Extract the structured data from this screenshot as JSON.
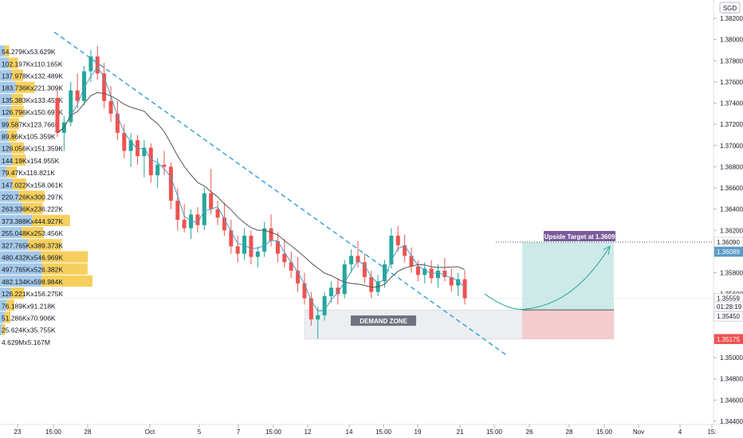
{
  "currency_label": "SGD",
  "price_axis": {
    "ticks": [
      "1.38200",
      "1.38000",
      "1.37800",
      "1.37600",
      "1.37400",
      "1.37200",
      "1.37000",
      "1.36800",
      "1.36600",
      "1.36400",
      "1.36200",
      "1.35800",
      "1.35600",
      "1.35400",
      "1.35200",
      "1.35000",
      "1.34800",
      "1.34600",
      "1.34400"
    ],
    "tick_values": [
      1.382,
      1.38,
      1.378,
      1.376,
      1.374,
      1.372,
      1.37,
      1.368,
      1.366,
      1.364,
      1.362,
      1.358,
      1.356,
      1.354,
      1.352,
      1.35,
      1.348,
      1.346,
      1.344
    ],
    "badges": [
      {
        "text": "1.36090",
        "value": 1.3609,
        "bg": "#ffffff",
        "fg": "#131722"
      },
      {
        "text": "1.36089",
        "value": 1.36089,
        "bg": "#5b9cc8",
        "fg": "#ffffff",
        "offset": 12
      },
      {
        "text": "1.35559",
        "value": 1.35559,
        "bg": "#ffffff",
        "fg": "#131722"
      },
      {
        "text": "01:28:19",
        "value": 1.35459,
        "bg": "#ffffff",
        "fg": "#131722",
        "offset": -3
      },
      {
        "text": "1.35450",
        "value": 1.3545,
        "bg": "#ffffff",
        "fg": "#131722",
        "offset": 8
      },
      {
        "text": "1.35175",
        "value": 1.35175,
        "bg": "#ef5350",
        "fg": "#ffffff"
      }
    ]
  },
  "time_axis": {
    "labels": [
      "23",
      "15:00",
      "28",
      "Oct",
      "5",
      "7",
      "15:00",
      "12",
      "14",
      "15:00",
      "19",
      "21",
      "15:00",
      "26",
      "28",
      "15:00",
      "Nov",
      "4",
      "15:"
    ]
  },
  "volume_profile": {
    "labels": [
      "54.279Kx53.629K",
      "102.197Kx110.165K",
      "137.978Kx132.489K",
      "183.736Kx221.309K",
      "135.383Kx133.452K",
      "126.796Kx150.697K",
      "99.587Kx123.766K",
      "89.86Kx105.359K",
      "128.056Kx151.359K",
      "144.19Kx154.955K",
      "79.47Kx116.821K",
      "147.022Kx158.061K",
      "220.726Kx300.297K",
      "263.336Kx236.222K",
      "373.388Kx444.927K",
      "255.048Kx253.456K",
      "327.765Kx389.373K",
      "480.432Kx546.969K",
      "497.765Kx526.382K",
      "482.134Kx598.984K",
      "126.221Kx156.275K",
      "76.189Kx91.218K",
      "51.286Kx70.906K",
      "25.624Kx35.755K",
      "4.629Mx5.167M"
    ],
    "up": [
      54.279,
      102.197,
      137.978,
      183.736,
      135.383,
      126.796,
      99.587,
      89.86,
      128.056,
      144.19,
      79.47,
      147.022,
      220.726,
      263.336,
      373.388,
      255.048,
      327.765,
      480.432,
      497.765,
      482.134,
      126.221,
      76.189,
      51.286,
      25.624
    ],
    "down": [
      53.629,
      110.165,
      132.489,
      221.309,
      133.452,
      150.697,
      123.766,
      105.359,
      151.359,
      154.955,
      116.821,
      158.061,
      300.297,
      236.222,
      444.927,
      253.456,
      389.373,
      546.969,
      526.382,
      598.984,
      156.275,
      91.218,
      70.906,
      35.755
    ]
  },
  "annotations": {
    "demand_zone": "DEMAND ZONE",
    "upside_target": "Upside Target at 1.3609"
  },
  "colors": {
    "up": "#26a69a",
    "down": "#ef5350",
    "trendline": "#2f9fd8",
    "ma_fast": "#4a9cc4",
    "ma_slow": "#555555",
    "profile_up": "#5b9cd6",
    "profile_down": "#f5c842",
    "target_label_bg": "#7a5c9c",
    "long_profit": "#b2dfdb",
    "long_loss": "#f5c6cb"
  },
  "chart_data": {
    "type": "candlestick",
    "symbol_currency": "SGD",
    "price_range": [
      1.343,
      1.383
    ],
    "trendline": {
      "from": [
        "Sep 22",
        1.3807
      ],
      "to": [
        "Oct 23",
        1.3502
      ]
    },
    "demand_zone": {
      "low": 1.35175,
      "high": 1.3545,
      "from": "Oct 11",
      "to": "Oct 27"
    },
    "upside_target": 1.3609,
    "current_price": 1.35559,
    "countdown": "01:28:19",
    "candles": [
      [
        1.3745,
        1.3752,
        1.3708,
        1.3712
      ],
      [
        1.3712,
        1.3728,
        1.3695,
        1.3722
      ],
      [
        1.3722,
        1.376,
        1.3718,
        1.3752
      ],
      [
        1.3752,
        1.3768,
        1.3735,
        1.3742
      ],
      [
        1.3742,
        1.3775,
        1.3738,
        1.377
      ],
      [
        1.377,
        1.379,
        1.376,
        1.3784
      ],
      [
        1.3784,
        1.3794,
        1.3762,
        1.3768
      ],
      [
        1.3768,
        1.3778,
        1.3735,
        1.3742
      ],
      [
        1.3742,
        1.3756,
        1.3722,
        1.373
      ],
      [
        1.373,
        1.3742,
        1.3705,
        1.3712
      ],
      [
        1.3712,
        1.372,
        1.3688,
        1.3695
      ],
      [
        1.3695,
        1.3712,
        1.368,
        1.3705
      ],
      [
        1.3705,
        1.371,
        1.3682,
        1.369
      ],
      [
        1.369,
        1.3705,
        1.367,
        1.3698
      ],
      [
        1.3698,
        1.3702,
        1.3665,
        1.3672
      ],
      [
        1.3672,
        1.3688,
        1.366,
        1.3682
      ],
      [
        1.3682,
        1.3695,
        1.3672,
        1.368
      ],
      [
        1.368,
        1.3684,
        1.364,
        1.3648
      ],
      [
        1.3648,
        1.366,
        1.362,
        1.363
      ],
      [
        1.363,
        1.3645,
        1.3618,
        1.3622
      ],
      [
        1.3622,
        1.364,
        1.3612,
        1.3635
      ],
      [
        1.3635,
        1.3642,
        1.3618,
        1.3625
      ],
      [
        1.3625,
        1.366,
        1.362,
        1.3655
      ],
      [
        1.3655,
        1.3678,
        1.3635,
        1.364
      ],
      [
        1.364,
        1.3648,
        1.3625,
        1.3632
      ],
      [
        1.3632,
        1.3646,
        1.3615,
        1.362
      ],
      [
        1.362,
        1.363,
        1.3598,
        1.3605
      ],
      [
        1.3605,
        1.3615,
        1.359,
        1.3598
      ],
      [
        1.3598,
        1.3622,
        1.3592,
        1.3615
      ],
      [
        1.3615,
        1.362,
        1.3588,
        1.3595
      ],
      [
        1.3595,
        1.3605,
        1.3585,
        1.36
      ],
      [
        1.36,
        1.3628,
        1.3595,
        1.3622
      ],
      [
        1.3622,
        1.3635,
        1.3605,
        1.361
      ],
      [
        1.361,
        1.3618,
        1.359,
        1.3598
      ],
      [
        1.3598,
        1.3612,
        1.3585,
        1.359
      ],
      [
        1.359,
        1.36,
        1.3575,
        1.3582
      ],
      [
        1.3582,
        1.3595,
        1.3562,
        1.357
      ],
      [
        1.357,
        1.358,
        1.355,
        1.3556
      ],
      [
        1.3556,
        1.3562,
        1.353,
        1.3536
      ],
      [
        1.3536,
        1.3548,
        1.3518,
        1.354
      ],
      [
        1.354,
        1.3562,
        1.3535,
        1.3558
      ],
      [
        1.3558,
        1.3572,
        1.3552,
        1.3566
      ],
      [
        1.3566,
        1.3575,
        1.355,
        1.356
      ],
      [
        1.356,
        1.3592,
        1.3556,
        1.3588
      ],
      [
        1.3588,
        1.3602,
        1.358,
        1.3596
      ],
      [
        1.3596,
        1.361,
        1.3585,
        1.359
      ],
      [
        1.359,
        1.3598,
        1.357,
        1.3576
      ],
      [
        1.3576,
        1.3582,
        1.3556,
        1.3562
      ],
      [
        1.3562,
        1.3578,
        1.3558,
        1.3572
      ],
      [
        1.3572,
        1.3592,
        1.3566,
        1.3588
      ],
      [
        1.3588,
        1.3622,
        1.3584,
        1.3615
      ],
      [
        1.3615,
        1.3624,
        1.36,
        1.3606
      ],
      [
        1.3606,
        1.3616,
        1.359,
        1.3596
      ],
      [
        1.3596,
        1.3604,
        1.358,
        1.3586
      ],
      [
        1.3586,
        1.3592,
        1.3572,
        1.3578
      ],
      [
        1.3578,
        1.359,
        1.357,
        1.3584
      ],
      [
        1.3584,
        1.3592,
        1.357,
        1.3575
      ],
      [
        1.3575,
        1.3588,
        1.3566,
        1.3582
      ],
      [
        1.3582,
        1.3594,
        1.3572,
        1.3576
      ],
      [
        1.3576,
        1.3584,
        1.3562,
        1.3568
      ],
      [
        1.3568,
        1.358,
        1.3558,
        1.3574
      ],
      [
        1.3574,
        1.3582,
        1.355,
        1.3556
      ]
    ]
  }
}
